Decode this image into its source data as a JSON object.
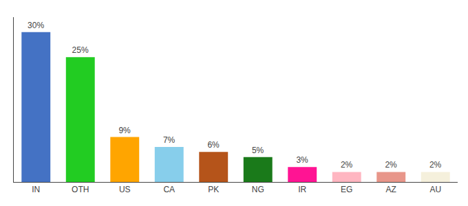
{
  "chart_data": {
    "type": "bar",
    "categories": [
      "IN",
      "OTH",
      "US",
      "CA",
      "PK",
      "NG",
      "IR",
      "EG",
      "AZ",
      "AU"
    ],
    "values": [
      30,
      25,
      9,
      7,
      6,
      5,
      3,
      2,
      2,
      2
    ],
    "value_labels": [
      "30%",
      "25%",
      "9%",
      "7%",
      "6%",
      "5%",
      "3%",
      "2%",
      "2%",
      "2%"
    ],
    "colors": [
      "#4472C4",
      "#22CC22",
      "#FFA500",
      "#87CEEB",
      "#B5541A",
      "#1A7A1A",
      "#FF1493",
      "#FFB6C1",
      "#E8968A",
      "#F5F0DC"
    ],
    "data_labels": true,
    "ylim": [
      0,
      33
    ],
    "grid": false,
    "tick_labels": "x"
  }
}
